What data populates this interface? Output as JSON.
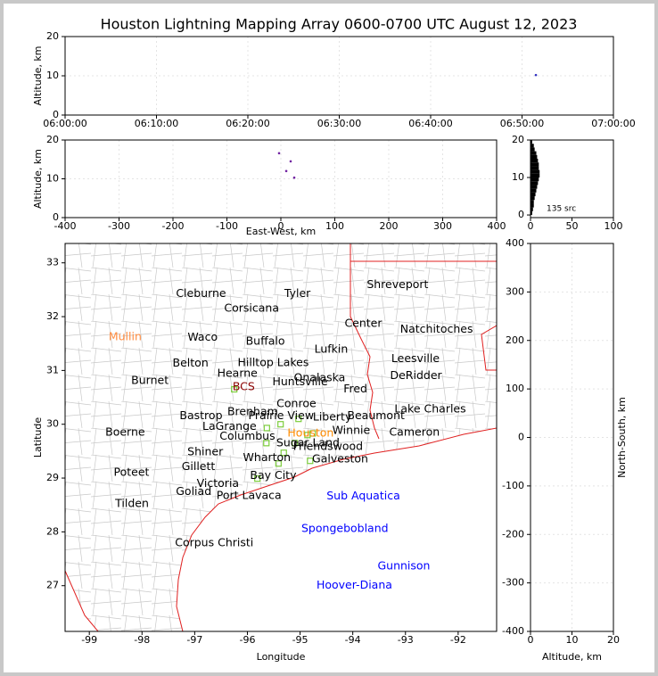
{
  "chart_data": [
    {
      "type": "scatter",
      "title": "Houston Lightning Mapping Array 0600-0700 UTC August 12, 2023",
      "ylabel": "Altitude, km",
      "xlim": [
        "06:00:00",
        "07:00:00"
      ],
      "xticks": [
        "06:00:00",
        "06:10:00",
        "06:20:00",
        "06:30:00",
        "06:40:00",
        "06:50:00",
        "07:00:00"
      ],
      "ylim": [
        0,
        20
      ],
      "yticks": [
        0,
        10,
        20
      ],
      "grid": true,
      "color": "#3030c0",
      "x": [
        "06:51:31"
      ],
      "values": [
        10.2
      ]
    },
    {
      "type": "scatter",
      "xlabel": "East-West, km",
      "ylabel": "Altitude, km",
      "xlim": [
        -400,
        400
      ],
      "xticks": [
        -400,
        -300,
        -200,
        -100,
        0,
        100,
        200,
        300,
        400
      ],
      "ylim": [
        0,
        20
      ],
      "yticks": [
        0,
        10,
        20
      ],
      "grid": true,
      "color": "#7020a0",
      "x": [
        -3.3,
        18.2,
        10,
        24.8
      ],
      "values": [
        16.6,
        14.5,
        12,
        10.3
      ]
    },
    {
      "type": "histogram",
      "annotation": "135 src",
      "xlim": [
        0,
        100
      ],
      "xticks": [
        0,
        50,
        100
      ],
      "ylim": [
        -0.7,
        20
      ],
      "yticks": [
        0,
        10,
        20
      ],
      "color": "#000000",
      "bins": [
        0,
        1,
        2,
        3,
        4,
        5,
        6,
        7,
        8,
        9,
        10,
        11,
        12,
        13,
        14,
        15,
        16,
        17,
        18,
        19,
        20
      ],
      "values": [
        2,
        3,
        4,
        4,
        5,
        6,
        7,
        8,
        9,
        10,
        11,
        11,
        10,
        10,
        9,
        8,
        7,
        5,
        4,
        2
      ]
    },
    {
      "type": "map",
      "xlabel": "Longitude",
      "ylabel": "Latitude",
      "xlim": [
        -99.46,
        -91.27
      ],
      "xticks": [
        -99,
        -98,
        -97,
        -96,
        -95,
        -94,
        -93,
        -92
      ],
      "ylim": [
        26.15,
        33.36
      ],
      "yticks": [
        27,
        28,
        29,
        30,
        31,
        32,
        33
      ],
      "color": "#7ccd3c",
      "x": [
        -96.25,
        -95.63,
        -95.64,
        -95.37,
        -95.03,
        -94.86,
        -94.76,
        -95.1,
        -95.31,
        -95.41,
        -94.81,
        -95.81
      ],
      "values": [
        30.65,
        29.93,
        29.65,
        30.0,
        30.1,
        29.8,
        29.83,
        29.65,
        29.47,
        29.27,
        29.32,
        28.99
      ],
      "cities": [
        {
          "text": "Cleburne",
          "lon": -96.88,
          "lat": 32.42,
          "color": "#000000"
        },
        {
          "text": "Tyler",
          "lon": -95.05,
          "lat": 32.42,
          "color": "#000000"
        },
        {
          "text": "Shreveport",
          "lon": -93.15,
          "lat": 32.59,
          "color": "#000000"
        },
        {
          "text": "Corsicana",
          "lon": -95.92,
          "lat": 32.15,
          "color": "#000000"
        },
        {
          "text": "Mullin",
          "lon": -98.32,
          "lat": 31.62,
          "color": "#ff8c40"
        },
        {
          "text": "Waco",
          "lon": -96.85,
          "lat": 31.61,
          "color": "#000000"
        },
        {
          "text": "Buffalo",
          "lon": -95.66,
          "lat": 31.54,
          "color": "#000000"
        },
        {
          "text": "Center",
          "lon": -93.8,
          "lat": 31.87,
          "color": "#000000"
        },
        {
          "text": "Natchitoches",
          "lon": -92.41,
          "lat": 31.76,
          "color": "#000000"
        },
        {
          "text": "Lufkin",
          "lon": -94.41,
          "lat": 31.39,
          "color": "#000000"
        },
        {
          "text": "Belton",
          "lon": -97.08,
          "lat": 31.13,
          "color": "#000000"
        },
        {
          "text": "Hilltop Lakes",
          "lon": -95.51,
          "lat": 31.14,
          "color": "#000000"
        },
        {
          "text": "Leesville",
          "lon": -92.81,
          "lat": 31.21,
          "color": "#000000"
        },
        {
          "text": "Hearne",
          "lon": -96.19,
          "lat": 30.94,
          "color": "#000000"
        },
        {
          "text": "Onalaska",
          "lon": -94.63,
          "lat": 30.86,
          "color": "#000000"
        },
        {
          "text": "DeRidder",
          "lon": -92.8,
          "lat": 30.9,
          "color": "#000000"
        },
        {
          "text": "Burnet",
          "lon": -97.85,
          "lat": 30.81,
          "color": "#000000"
        },
        {
          "text": "Huntsville",
          "lon": -95.0,
          "lat": 30.78,
          "color": "#000000"
        },
        {
          "text": "BCS",
          "lon": -96.07,
          "lat": 30.69,
          "color": "#8b0000"
        },
        {
          "text": "Fred",
          "lon": -93.95,
          "lat": 30.65,
          "color": "#000000"
        },
        {
          "text": "Conroe",
          "lon": -95.07,
          "lat": 30.38,
          "color": "#000000"
        },
        {
          "text": "Lake Charles",
          "lon": -92.53,
          "lat": 30.28,
          "color": "#000000"
        },
        {
          "text": "Bastrop",
          "lon": -96.88,
          "lat": 30.15,
          "color": "#000000"
        },
        {
          "text": "Brenham",
          "lon": -95.9,
          "lat": 30.23,
          "color": "#000000"
        },
        {
          "text": "Prairie View",
          "lon": -95.36,
          "lat": 30.15,
          "color": "#000000"
        },
        {
          "text": "Liberty",
          "lon": -94.39,
          "lat": 30.13,
          "color": "#000000"
        },
        {
          "text": "Beaumont",
          "lon": -93.56,
          "lat": 30.15,
          "color": "#000000"
        },
        {
          "text": "LaGrange",
          "lon": -96.34,
          "lat": 29.95,
          "color": "#000000"
        },
        {
          "text": "Boerne",
          "lon": -98.32,
          "lat": 29.85,
          "color": "#000000"
        },
        {
          "text": "Columbus",
          "lon": -96.0,
          "lat": 29.77,
          "color": "#000000"
        },
        {
          "text": "Houston",
          "lon": -94.8,
          "lat": 29.83,
          "color": "#ff8c00"
        },
        {
          "text": "Winnie",
          "lon": -94.03,
          "lat": 29.88,
          "color": "#000000"
        },
        {
          "text": "Cameron",
          "lon": -92.83,
          "lat": 29.85,
          "color": "#000000"
        },
        {
          "text": "Sugar Land",
          "lon": -94.85,
          "lat": 29.65,
          "color": "#000000"
        },
        {
          "text": "Friendswood",
          "lon": -94.47,
          "lat": 29.58,
          "color": "#000000"
        },
        {
          "text": "Shiner",
          "lon": -96.8,
          "lat": 29.48,
          "color": "#000000"
        },
        {
          "text": "Wharton",
          "lon": -95.63,
          "lat": 29.37,
          "color": "#000000"
        },
        {
          "text": "Galveston",
          "lon": -94.24,
          "lat": 29.35,
          "color": "#000000"
        },
        {
          "text": "Gillett",
          "lon": -96.93,
          "lat": 29.21,
          "color": "#000000"
        },
        {
          "text": "Poteet",
          "lon": -98.2,
          "lat": 29.1,
          "color": "#000000"
        },
        {
          "text": "Bay City",
          "lon": -95.51,
          "lat": 29.04,
          "color": "#000000"
        },
        {
          "text": "Victoria",
          "lon": -96.56,
          "lat": 28.89,
          "color": "#000000"
        },
        {
          "text": "Goliad",
          "lon": -97.02,
          "lat": 28.74,
          "color": "#000000"
        },
        {
          "text": "Port Lavaca",
          "lon": -95.97,
          "lat": 28.67,
          "color": "#000000"
        },
        {
          "text": "Sub Aquatica",
          "lon": -93.8,
          "lat": 28.66,
          "color": "#0000ff"
        },
        {
          "text": "Tilden",
          "lon": -98.19,
          "lat": 28.52,
          "color": "#000000"
        },
        {
          "text": "Spongebobland",
          "lon": -94.15,
          "lat": 28.06,
          "color": "#0000ff"
        },
        {
          "text": "Corpus Christi",
          "lon": -96.63,
          "lat": 27.79,
          "color": "#000000"
        },
        {
          "text": "Gunnison",
          "lon": -93.03,
          "lat": 27.36,
          "color": "#0000ff"
        },
        {
          "text": "Hoover-Diana",
          "lon": -93.97,
          "lat": 27.0,
          "color": "#0000ff"
        }
      ]
    },
    {
      "type": "scatter",
      "xlabel": "Altitude, km",
      "ylabel": "North-South, km",
      "xlim": [
        0,
        20
      ],
      "xticks": [
        0,
        10,
        20
      ],
      "ylim": [
        -400,
        400
      ],
      "yticks": [
        -400,
        -300,
        -200,
        -100,
        0,
        100,
        200,
        300,
        400
      ],
      "grid": true
    }
  ]
}
